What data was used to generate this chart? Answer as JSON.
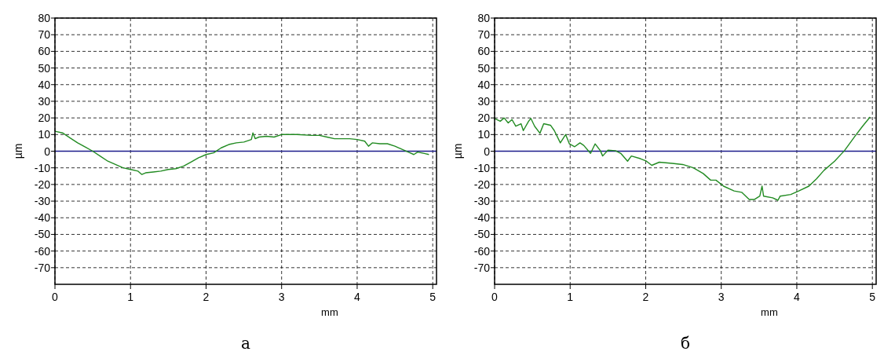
{
  "chart_data": [
    {
      "type": "line",
      "xlabel": "mm",
      "ylabel": "µm",
      "xlim": [
        0,
        5.05
      ],
      "ylim": [
        -80,
        80
      ],
      "xticks": [
        0,
        1,
        2,
        3,
        4,
        5
      ],
      "yticks": [
        80,
        70,
        60,
        50,
        40,
        30,
        20,
        10,
        0,
        -10,
        -20,
        -30,
        -40,
        -50,
        -60,
        -70
      ],
      "grid": true,
      "ref_lines": [
        {
          "axis": "y",
          "value": 0,
          "color": "#1c1c8c"
        }
      ],
      "annotations": [
        "а"
      ],
      "series": [
        {
          "color": "#228b22",
          "x": [
            0,
            0.1,
            0.2,
            0.3,
            0.4,
            0.5,
            0.6,
            0.7,
            0.8,
            0.9,
            1.0,
            1.1,
            1.15,
            1.2,
            1.3,
            1.4,
            1.5,
            1.6,
            1.7,
            1.8,
            1.9,
            2.0,
            2.1,
            2.2,
            2.3,
            2.4,
            2.5,
            2.6,
            2.62,
            2.65,
            2.7,
            2.8,
            2.9,
            3.0,
            3.2,
            3.4,
            3.5,
            3.6,
            3.7,
            3.8,
            3.9,
            4.0,
            4.1,
            4.15,
            4.2,
            4.3,
            4.4,
            4.5,
            4.6,
            4.7,
            4.75,
            4.8,
            4.9,
            4.95
          ],
          "values": [
            12,
            11,
            8,
            5,
            2.5,
            0,
            -3,
            -6,
            -8,
            -10,
            -11,
            -12,
            -14,
            -13,
            -12.5,
            -12,
            -11,
            -10.5,
            -9,
            -6.5,
            -4,
            -2,
            -1,
            2,
            4,
            5,
            5.5,
            7,
            11,
            7.5,
            8.5,
            9,
            8.5,
            10,
            10,
            9.5,
            9.5,
            8.5,
            7.5,
            7.5,
            7.5,
            7,
            6,
            3,
            5,
            4.5,
            4.5,
            3,
            1,
            -1,
            -2,
            -0.5,
            -1.5,
            -2
          ]
        }
      ]
    },
    {
      "type": "line",
      "xlabel": "mm",
      "ylabel": "µm",
      "xlim": [
        0,
        5.05
      ],
      "ylim": [
        -80,
        80
      ],
      "xticks": [
        0,
        1,
        2,
        3,
        4,
        5
      ],
      "yticks": [
        80,
        70,
        60,
        50,
        40,
        30,
        20,
        10,
        0,
        -10,
        -20,
        -30,
        -40,
        -50,
        -60,
        -70
      ],
      "grid": true,
      "ref_lines": [
        {
          "axis": "y",
          "value": 0,
          "color": "#1c1c8c"
        }
      ],
      "annotations": [
        "б"
      ],
      "series": [
        {
          "color": "#228b22",
          "x": [
            0,
            0.075,
            0.126,
            0.18,
            0.23,
            0.28,
            0.35,
            0.38,
            0.45,
            0.48,
            0.53,
            0.6,
            0.65,
            0.74,
            0.79,
            0.87,
            0.94,
            0.99,
            1.06,
            1.13,
            1.18,
            1.27,
            1.33,
            1.4,
            1.43,
            1.5,
            1.6,
            1.67,
            1.76,
            1.81,
            1.93,
            2.01,
            2.08,
            2.18,
            2.35,
            2.49,
            2.63,
            2.76,
            2.86,
            2.93,
            3.03,
            3.17,
            3.27,
            3.37,
            3.44,
            3.51,
            3.54,
            3.56,
            3.68,
            3.75,
            3.78,
            3.92,
            4.02,
            4.16,
            4.26,
            4.36,
            4.5,
            4.63,
            4.77,
            4.87,
            4.97
          ],
          "values": [
            19.7,
            18,
            20,
            17,
            19,
            15,
            16.5,
            12.4,
            18,
            19.7,
            15,
            10.8,
            16.5,
            15.6,
            12.4,
            5,
            10,
            4.4,
            2.7,
            5,
            3.5,
            -1.3,
            4.4,
            0.3,
            -2.9,
            0.6,
            0.3,
            -1.3,
            -6,
            -2.9,
            -4.5,
            -6,
            -8.5,
            -6.6,
            -7.3,
            -8,
            -10,
            -13.4,
            -17.4,
            -17.4,
            -21,
            -23.9,
            -24.7,
            -29,
            -29,
            -27,
            -21,
            -27,
            -28,
            -29.5,
            -27,
            -26,
            -24,
            -21,
            -16.6,
            -11.5,
            -6,
            0.3,
            9,
            15,
            20.5
          ]
        }
      ]
    }
  ]
}
